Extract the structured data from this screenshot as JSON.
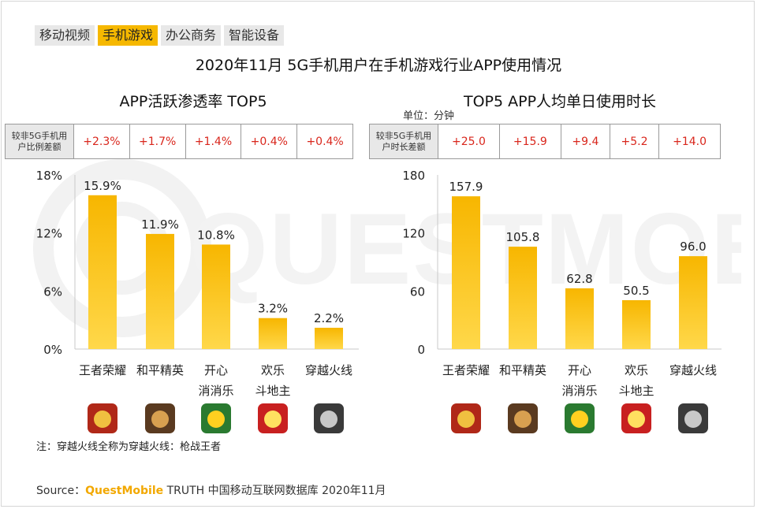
{
  "tabs": [
    {
      "label": "移动视频",
      "active": false
    },
    {
      "label": "手机游戏",
      "active": true
    },
    {
      "label": "办公商务",
      "active": false
    },
    {
      "label": "智能设备",
      "active": false
    }
  ],
  "main_title": "2020年11月 5G手机用户在手机游戏行业APP使用情况",
  "left_panel": {
    "title": "APP活跃渗透率 TOP5",
    "diff_header": "较非5G手机用户比例差额",
    "diffs": [
      "+2.3%",
      "+1.7%",
      "+1.4%",
      "+0.4%",
      "+0.4%"
    ]
  },
  "right_panel": {
    "title": "TOP5 APP人均单日使用时长",
    "unit": "单位：分钟",
    "diff_header": "较非5G手机用户时长差额",
    "diffs": [
      "+25.0",
      "+15.9",
      "+9.4",
      "+5.2",
      "+14.0"
    ]
  },
  "chart_data": [
    {
      "type": "bar",
      "title": "APP活跃渗透率 TOP5",
      "categories": [
        "王者荣耀",
        "和平精英",
        "开心\n消消乐",
        "欢乐\n斗地主",
        "穿越火线"
      ],
      "values": [
        15.9,
        11.9,
        10.8,
        3.2,
        2.2
      ],
      "value_labels": [
        "15.9%",
        "11.9%",
        "10.8%",
        "3.2%",
        "2.2%"
      ],
      "ylim": [
        0,
        18
      ],
      "yticks": [
        0,
        6,
        12,
        18
      ],
      "ytick_labels": [
        "0%",
        "6%",
        "12%",
        "18%"
      ],
      "grid": false
    },
    {
      "type": "bar",
      "title": "TOP5 APP人均单日使用时长",
      "categories": [
        "王者荣耀",
        "和平精英",
        "开心\n消消乐",
        "欢乐\n斗地主",
        "穿越火线"
      ],
      "values": [
        157.9,
        105.8,
        62.8,
        50.5,
        96.0
      ],
      "value_labels": [
        "157.9",
        "105.8",
        "62.8",
        "50.5",
        "96.0"
      ],
      "ylim": [
        0,
        180
      ],
      "yticks": [
        0,
        60,
        120,
        180
      ],
      "ytick_labels": [
        "0",
        "60",
        "120",
        "180"
      ],
      "grid": false
    }
  ],
  "icons": [
    "wangzhe-icon",
    "heping-icon",
    "xiaoxiaole-icon",
    "doudizhu-icon",
    "chuanyue-icon"
  ],
  "note": "注：穿越火线全称为穿越火线：枪战王者",
  "source": {
    "prefix": "Source：",
    "brand": "QuestMobile",
    "suffix": " TRUTH 中国移动互联网数据库 2020年11月"
  },
  "colors": {
    "bar_top": "#f7b600",
    "bar_bottom": "#ffd84a",
    "accent": "#f6b800",
    "diff_text": "#d9261c"
  }
}
